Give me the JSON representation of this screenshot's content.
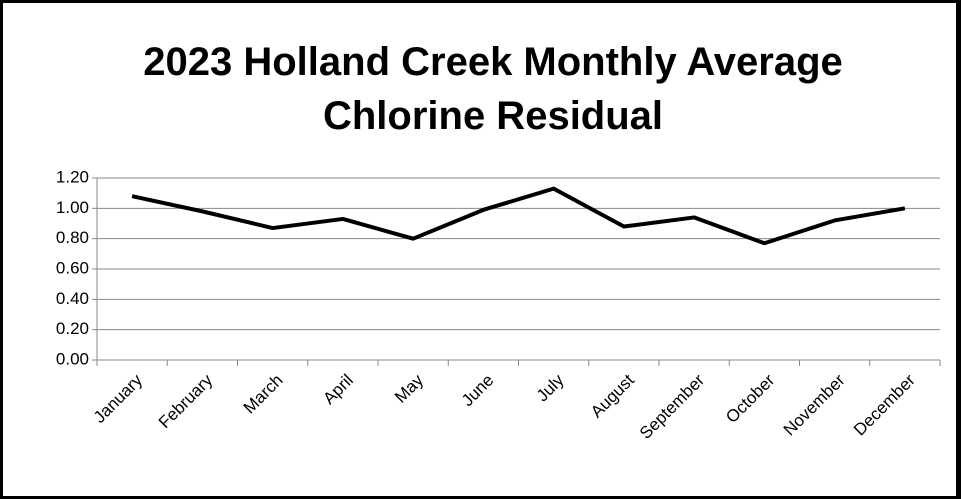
{
  "chart_data": {
    "type": "line",
    "title": "2023 Holland Creek Monthly Average Chlorine Residual",
    "categories": [
      "January",
      "February",
      "March",
      "April",
      "May",
      "June",
      "July",
      "August",
      "September",
      "October",
      "November",
      "December"
    ],
    "values": [
      1.08,
      0.98,
      0.87,
      0.93,
      0.8,
      0.99,
      1.13,
      0.88,
      0.94,
      0.77,
      0.92,
      1.0
    ],
    "color": "#000000",
    "ylim": [
      0,
      1.2
    ],
    "yticks": [
      {
        "value": 0,
        "label": "0.00"
      },
      {
        "value": 0.2,
        "label": "0.20"
      },
      {
        "value": 0.4,
        "label": "0.40"
      },
      {
        "value": 0.6,
        "label": "0.60"
      },
      {
        "value": 0.8,
        "label": "0.80"
      },
      {
        "value": 1.0,
        "label": "1.00"
      },
      {
        "value": 1.2,
        "label": "1.20"
      }
    ],
    "grid": true
  }
}
